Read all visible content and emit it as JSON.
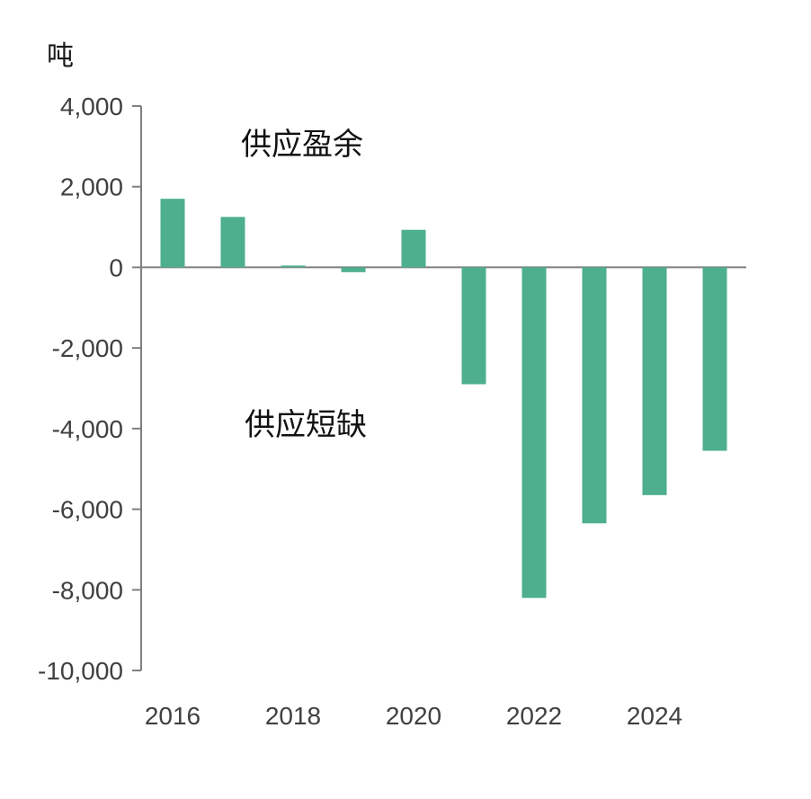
{
  "chart_data": {
    "type": "bar",
    "title": "",
    "ylabel": "吨",
    "xlabel": "",
    "x": [
      2016,
      2017,
      2018,
      2019,
      2020,
      2021,
      2022,
      2023,
      2024,
      2025
    ],
    "values": [
      1700,
      1250,
      30,
      -120,
      930,
      -2900,
      -8200,
      -6350,
      -5650,
      -4550
    ],
    "ylim": [
      -10000,
      4000
    ],
    "yticks": [
      4000,
      2000,
      0,
      -2000,
      -4000,
      -6000,
      -8000,
      -10000
    ],
    "ytick_labels": [
      "4,000",
      "2,000",
      "0",
      "-2,000",
      "-4,000",
      "-6,000",
      "-8,000",
      "-10,000"
    ],
    "xtick_labels": [
      "2016",
      "2018",
      "2020",
      "2022",
      "2024"
    ],
    "annotations": [
      "供应盈余",
      "供应短缺"
    ],
    "bar_color": "#4daf8d",
    "axis_color": "#7f7f7f",
    "grid": false,
    "legend": "none"
  }
}
